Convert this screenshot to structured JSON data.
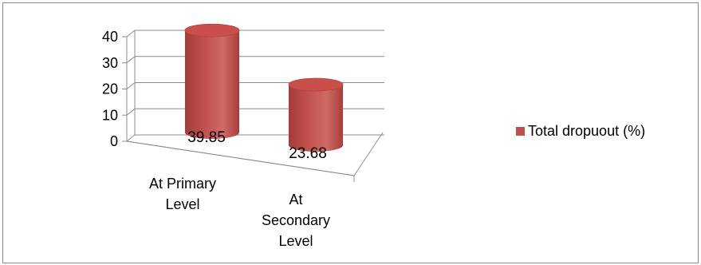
{
  "chart_data": {
    "type": "bar",
    "categories": [
      "At Primary Level",
      "At Secondary Level"
    ],
    "category_lines": [
      [
        "At Primary",
        "Level"
      ],
      [
        "At",
        "Secondary",
        "Level"
      ]
    ],
    "series": [
      {
        "name": "Total dropuout (%)",
        "values": [
          39.85,
          23.68
        ],
        "color": "#c0504d"
      }
    ],
    "data_labels": [
      "39.85",
      "23.68"
    ],
    "yticks": [
      "0",
      "10",
      "20",
      "30",
      "40"
    ],
    "ylim": [
      0,
      40
    ],
    "grid": true,
    "legend_position": "right",
    "style": "3d-cylinder"
  }
}
